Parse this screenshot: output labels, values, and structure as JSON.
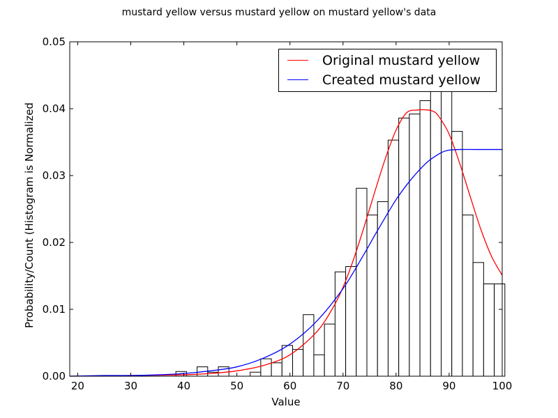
{
  "chart_data": {
    "type": "bar",
    "title": "mustard yellow versus mustard yellow on mustard yellow's data",
    "xlabel": "Value",
    "ylabel": "Probability/Count (Histogram is Normalized",
    "xlim": [
      18.5,
      100
    ],
    "ylim": [
      0,
      0.05
    ],
    "xticks": [
      "20",
      "30",
      "40",
      "50",
      "60",
      "70",
      "80",
      "90",
      "100"
    ],
    "yticks": [
      "0.00",
      "0.01",
      "0.02",
      "0.03",
      "0.04",
      "0.05"
    ],
    "legend_position": "top-right",
    "grid": false,
    "histogram": {
      "bin_start": 18.5,
      "bin_width": 2.0,
      "values": [
        0,
        0,
        0,
        0,
        0,
        0,
        0,
        0,
        0,
        0,
        0.0007,
        0,
        0.0014,
        0.0006,
        0.0014,
        0,
        0,
        0.0006,
        0.0026,
        0.002,
        0.0046,
        0.004,
        0.0092,
        0.0032,
        0.0078,
        0.0156,
        0.0164,
        0.0281,
        0.0241,
        0.0261,
        0.0353,
        0.0386,
        0.0392,
        0.0412,
        0.0432,
        0.0432,
        0.0366,
        0.0241,
        0.017,
        0.0138,
        0.0138
      ]
    },
    "series": [
      {
        "name": "Original mustard yellow",
        "color": "#ff0000",
        "x": [
          18.5,
          30,
          40,
          45,
          50,
          55,
          60,
          65,
          68,
          70,
          72,
          74,
          76,
          78,
          80,
          82,
          84,
          86,
          87,
          88,
          90,
          92,
          94,
          96,
          98,
          100
        ],
        "y": [
          0,
          0.0001,
          0.0002,
          0.0004,
          0.0008,
          0.0016,
          0.0032,
          0.0066,
          0.0101,
          0.0133,
          0.0175,
          0.0224,
          0.0276,
          0.0326,
          0.0368,
          0.0394,
          0.0398,
          0.0398,
          0.0396,
          0.0389,
          0.0362,
          0.0318,
          0.0268,
          0.0219,
          0.0179,
          0.0151
        ]
      },
      {
        "name": "Created mustard yellow",
        "color": "#0000ff",
        "x": [
          18.5,
          25,
          30,
          35,
          40,
          45,
          50,
          55,
          60,
          65,
          70,
          74,
          76,
          78,
          80,
          82,
          84,
          86,
          88,
          89,
          90,
          92,
          95,
          100
        ],
        "y": [
          0,
          0.0001,
          0.0001,
          0.0002,
          0.0004,
          0.0008,
          0.0014,
          0.0027,
          0.0048,
          0.0082,
          0.0131,
          0.0183,
          0.0211,
          0.0238,
          0.0264,
          0.0286,
          0.0305,
          0.0321,
          0.0332,
          0.0336,
          0.0338,
          0.0339,
          0.0339,
          0.0339
        ]
      }
    ]
  }
}
